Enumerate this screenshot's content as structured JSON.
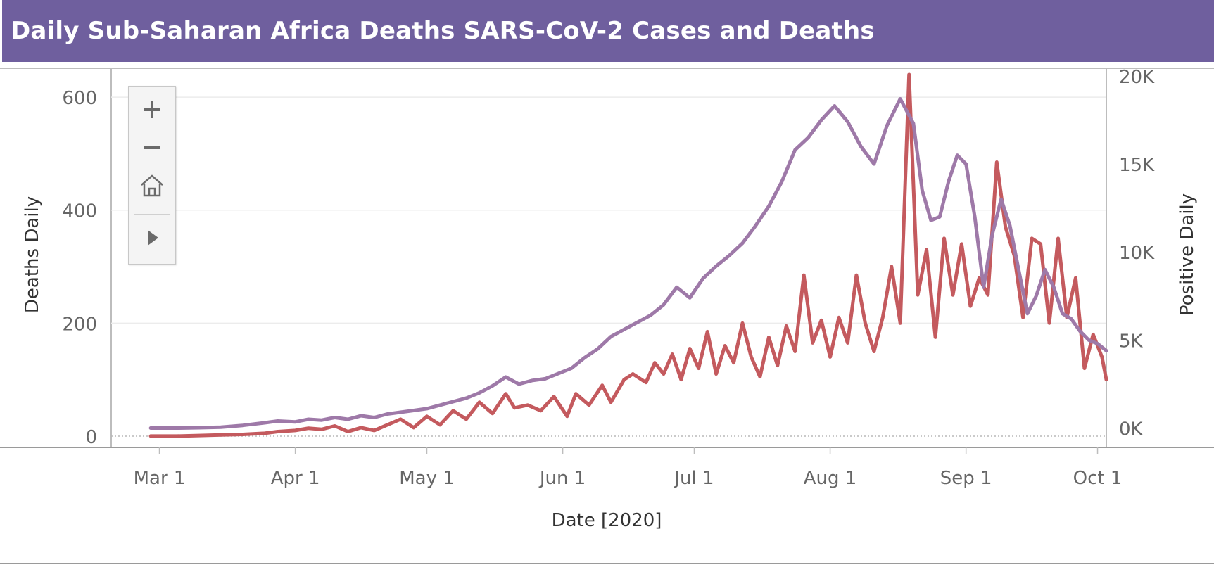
{
  "header": {
    "title": "Daily Sub-Saharan Africa Deaths SARS-CoV-2 Cases and Deaths",
    "background_color": "#6f5f9e"
  },
  "zoom_controls": {
    "icons": [
      "plus-icon",
      "minus-icon",
      "home-icon",
      "play-icon"
    ]
  },
  "chart_data": {
    "type": "line",
    "xlabel": "Date [2020]",
    "ylabel_left": "Deaths Daily",
    "ylabel_right": "Positive Daily",
    "x_ticks": [
      "Mar 1",
      "Apr 1",
      "May 1",
      "Jun 1",
      "Jul 1",
      "Aug 1",
      "Sep 1",
      "Oct 1"
    ],
    "x_tick_dates": [
      "2020-03-01",
      "2020-04-01",
      "2020-05-01",
      "2020-06-01",
      "2020-07-01",
      "2020-08-01",
      "2020-09-01",
      "2020-10-01"
    ],
    "y_left_ticks": [
      "0",
      "200",
      "400",
      "600"
    ],
    "y_left_tick_values": [
      0,
      200,
      400,
      600
    ],
    "y_right_ticks": [
      "0K",
      "5K",
      "10K",
      "15K",
      "20K"
    ],
    "y_right_tick_values": [
      0,
      5000,
      10000,
      15000,
      20000
    ],
    "xlim": [
      "2020-02-19",
      "2020-10-03"
    ],
    "ylim_left": [
      -20,
      650
    ],
    "ylim_right": [
      -1100,
      20400
    ],
    "grid": true,
    "series": [
      {
        "axis": "left",
        "color": "#c45a5e",
        "points": [
          [
            "2020-02-28",
            0
          ],
          [
            "2020-03-05",
            0
          ],
          [
            "2020-03-10",
            1
          ],
          [
            "2020-03-15",
            2
          ],
          [
            "2020-03-20",
            3
          ],
          [
            "2020-03-25",
            5
          ],
          [
            "2020-03-28",
            8
          ],
          [
            "2020-04-01",
            10
          ],
          [
            "2020-04-04",
            14
          ],
          [
            "2020-04-07",
            12
          ],
          [
            "2020-04-10",
            18
          ],
          [
            "2020-04-13",
            8
          ],
          [
            "2020-04-16",
            15
          ],
          [
            "2020-04-19",
            10
          ],
          [
            "2020-04-22",
            20
          ],
          [
            "2020-04-25",
            30
          ],
          [
            "2020-04-28",
            15
          ],
          [
            "2020-05-01",
            35
          ],
          [
            "2020-05-04",
            20
          ],
          [
            "2020-05-07",
            45
          ],
          [
            "2020-05-10",
            30
          ],
          [
            "2020-05-13",
            60
          ],
          [
            "2020-05-16",
            40
          ],
          [
            "2020-05-19",
            75
          ],
          [
            "2020-05-21",
            50
          ],
          [
            "2020-05-24",
            55
          ],
          [
            "2020-05-27",
            45
          ],
          [
            "2020-05-30",
            70
          ],
          [
            "2020-06-02",
            35
          ],
          [
            "2020-06-04",
            75
          ],
          [
            "2020-06-07",
            55
          ],
          [
            "2020-06-10",
            90
          ],
          [
            "2020-06-12",
            60
          ],
          [
            "2020-06-15",
            100
          ],
          [
            "2020-06-17",
            110
          ],
          [
            "2020-06-20",
            95
          ],
          [
            "2020-06-22",
            130
          ],
          [
            "2020-06-24",
            110
          ],
          [
            "2020-06-26",
            145
          ],
          [
            "2020-06-28",
            100
          ],
          [
            "2020-06-30",
            155
          ],
          [
            "2020-07-02",
            120
          ],
          [
            "2020-07-04",
            185
          ],
          [
            "2020-07-06",
            110
          ],
          [
            "2020-07-08",
            160
          ],
          [
            "2020-07-10",
            130
          ],
          [
            "2020-07-12",
            200
          ],
          [
            "2020-07-14",
            140
          ],
          [
            "2020-07-16",
            105
          ],
          [
            "2020-07-18",
            175
          ],
          [
            "2020-07-20",
            125
          ],
          [
            "2020-07-22",
            195
          ],
          [
            "2020-07-24",
            150
          ],
          [
            "2020-07-26",
            285
          ],
          [
            "2020-07-28",
            165
          ],
          [
            "2020-07-30",
            205
          ],
          [
            "2020-08-01",
            140
          ],
          [
            "2020-08-03",
            210
          ],
          [
            "2020-08-05",
            165
          ],
          [
            "2020-08-07",
            285
          ],
          [
            "2020-08-09",
            200
          ],
          [
            "2020-08-11",
            150
          ],
          [
            "2020-08-13",
            210
          ],
          [
            "2020-08-15",
            300
          ],
          [
            "2020-08-17",
            200
          ],
          [
            "2020-08-19",
            640
          ],
          [
            "2020-08-21",
            250
          ],
          [
            "2020-08-23",
            330
          ],
          [
            "2020-08-25",
            175
          ],
          [
            "2020-08-27",
            350
          ],
          [
            "2020-08-29",
            250
          ],
          [
            "2020-08-31",
            340
          ],
          [
            "2020-09-02",
            230
          ],
          [
            "2020-09-04",
            280
          ],
          [
            "2020-09-06",
            250
          ],
          [
            "2020-09-08",
            485
          ],
          [
            "2020-09-10",
            370
          ],
          [
            "2020-09-12",
            320
          ],
          [
            "2020-09-14",
            210
          ],
          [
            "2020-09-16",
            350
          ],
          [
            "2020-09-18",
            340
          ],
          [
            "2020-09-20",
            200
          ],
          [
            "2020-09-22",
            350
          ],
          [
            "2020-09-24",
            210
          ],
          [
            "2020-09-26",
            280
          ],
          [
            "2020-09-28",
            120
          ],
          [
            "2020-09-30",
            180
          ],
          [
            "2020-10-02",
            140
          ],
          [
            "2020-10-03",
            100
          ]
        ]
      },
      {
        "axis": "right",
        "color": "#9e79a8",
        "points": [
          [
            "2020-02-28",
            0
          ],
          [
            "2020-03-05",
            0
          ],
          [
            "2020-03-10",
            20
          ],
          [
            "2020-03-15",
            50
          ],
          [
            "2020-03-20",
            150
          ],
          [
            "2020-03-25",
            300
          ],
          [
            "2020-03-28",
            400
          ],
          [
            "2020-04-01",
            350
          ],
          [
            "2020-04-04",
            500
          ],
          [
            "2020-04-07",
            450
          ],
          [
            "2020-04-10",
            600
          ],
          [
            "2020-04-13",
            500
          ],
          [
            "2020-04-16",
            700
          ],
          [
            "2020-04-19",
            600
          ],
          [
            "2020-04-22",
            800
          ],
          [
            "2020-04-25",
            900
          ],
          [
            "2020-04-28",
            1000
          ],
          [
            "2020-05-01",
            1100
          ],
          [
            "2020-05-04",
            1300
          ],
          [
            "2020-05-07",
            1500
          ],
          [
            "2020-05-10",
            1700
          ],
          [
            "2020-05-13",
            2000
          ],
          [
            "2020-05-16",
            2400
          ],
          [
            "2020-05-19",
            2900
          ],
          [
            "2020-05-22",
            2500
          ],
          [
            "2020-05-25",
            2700
          ],
          [
            "2020-05-28",
            2800
          ],
          [
            "2020-05-31",
            3100
          ],
          [
            "2020-06-03",
            3400
          ],
          [
            "2020-06-06",
            4000
          ],
          [
            "2020-06-09",
            4500
          ],
          [
            "2020-06-12",
            5200
          ],
          [
            "2020-06-15",
            5600
          ],
          [
            "2020-06-18",
            6000
          ],
          [
            "2020-06-21",
            6400
          ],
          [
            "2020-06-24",
            7000
          ],
          [
            "2020-06-27",
            8000
          ],
          [
            "2020-06-30",
            7400
          ],
          [
            "2020-07-03",
            8500
          ],
          [
            "2020-07-06",
            9200
          ],
          [
            "2020-07-09",
            9800
          ],
          [
            "2020-07-12",
            10500
          ],
          [
            "2020-07-15",
            11500
          ],
          [
            "2020-07-18",
            12600
          ],
          [
            "2020-07-21",
            14000
          ],
          [
            "2020-07-24",
            15800
          ],
          [
            "2020-07-27",
            16500
          ],
          [
            "2020-07-30",
            17500
          ],
          [
            "2020-08-02",
            18300
          ],
          [
            "2020-08-05",
            17400
          ],
          [
            "2020-08-08",
            16000
          ],
          [
            "2020-08-11",
            15000
          ],
          [
            "2020-08-14",
            17200
          ],
          [
            "2020-08-17",
            18700
          ],
          [
            "2020-08-20",
            17300
          ],
          [
            "2020-08-22",
            13500
          ],
          [
            "2020-08-24",
            11800
          ],
          [
            "2020-08-26",
            12000
          ],
          [
            "2020-08-28",
            14000
          ],
          [
            "2020-08-30",
            15500
          ],
          [
            "2020-09-01",
            15000
          ],
          [
            "2020-09-03",
            12000
          ],
          [
            "2020-09-05",
            8000
          ],
          [
            "2020-09-07",
            11000
          ],
          [
            "2020-09-09",
            13000
          ],
          [
            "2020-09-11",
            11500
          ],
          [
            "2020-09-13",
            9000
          ],
          [
            "2020-09-15",
            6500
          ],
          [
            "2020-09-17",
            7500
          ],
          [
            "2020-09-19",
            9000
          ],
          [
            "2020-09-21",
            8000
          ],
          [
            "2020-09-23",
            6500
          ],
          [
            "2020-09-25",
            6200
          ],
          [
            "2020-09-27",
            5500
          ],
          [
            "2020-09-29",
            5000
          ],
          [
            "2020-10-01",
            4800
          ],
          [
            "2020-10-03",
            4400
          ]
        ]
      }
    ]
  }
}
